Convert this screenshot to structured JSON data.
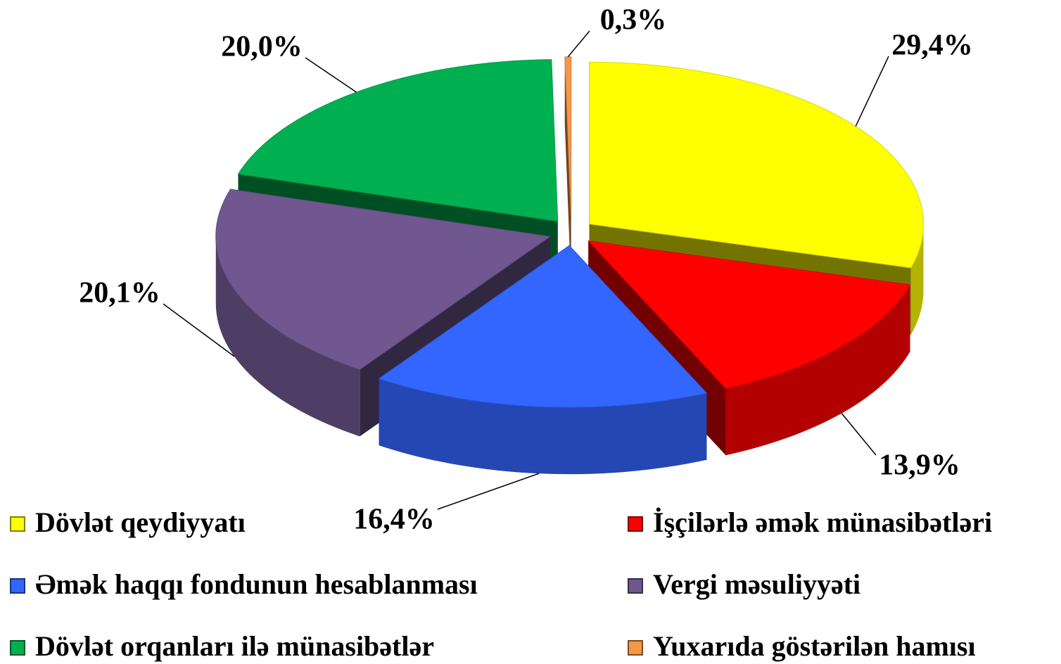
{
  "chart_data": {
    "type": "pie",
    "categories": [
      "Dövlət qeydiyyatı",
      "İşçilərlə əmək münasibətləri",
      "Əmək haqqı fondunun hesablanması",
      "Vergi məsuliyyəti",
      "Dövlət orqanları ilə münasibətlər",
      "Yuxarıda göstərilən hamısı"
    ],
    "values": [
      29.4,
      13.9,
      16.4,
      20.1,
      20.0,
      0.3
    ],
    "value_labels": [
      "29,4%",
      "13,9%",
      "16,4%",
      "20,1%",
      "20,0%",
      "0,3%"
    ],
    "colors": [
      "#ffff00",
      "#ff0000",
      "#3366ff",
      "#70578f",
      "#00b050",
      "#f79646"
    ]
  }
}
